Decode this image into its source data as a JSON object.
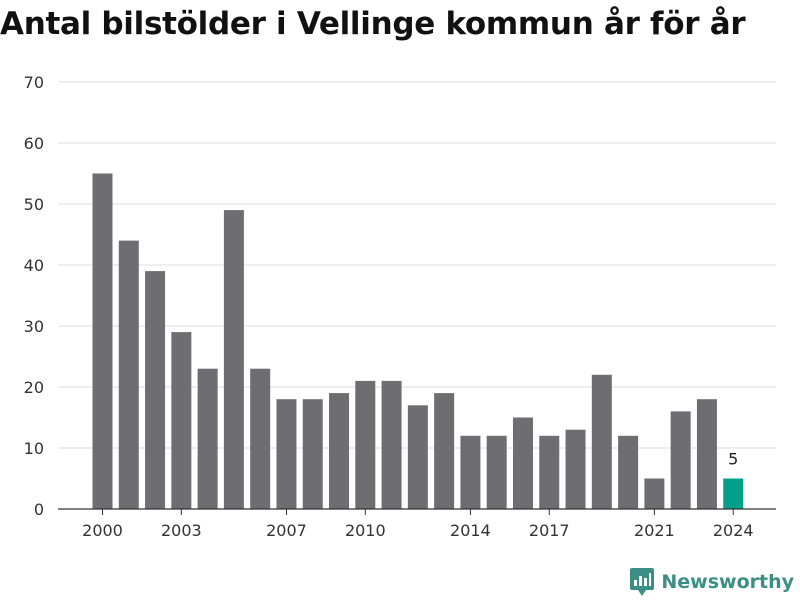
{
  "chart_data": {
    "type": "bar",
    "title": "Antal bilstölder i Vellinge kommun år för år",
    "xlabel": "",
    "ylabel": "",
    "categories": [
      2000,
      2001,
      2002,
      2003,
      2004,
      2005,
      2006,
      2007,
      2008,
      2009,
      2010,
      2011,
      2012,
      2013,
      2014,
      2015,
      2016,
      2017,
      2018,
      2019,
      2020,
      2021,
      2022,
      2023,
      2024
    ],
    "values": [
      55,
      44,
      39,
      29,
      23,
      49,
      23,
      18,
      18,
      19,
      21,
      21,
      17,
      19,
      12,
      12,
      15,
      12,
      13,
      22,
      12,
      5,
      16,
      18,
      5
    ],
    "x_tick_labels": [
      "2000",
      "2003",
      "2007",
      "2010",
      "2014",
      "2017",
      "2021",
      "2024"
    ],
    "y_ticks": [
      0,
      10,
      20,
      30,
      40,
      50,
      60,
      70
    ],
    "ylim": [
      0,
      70
    ],
    "grid": true,
    "highlight": {
      "category": 2024,
      "label": "5",
      "color": "#00a08a"
    },
    "bar_color": "#6e6d72"
  },
  "branding": {
    "name": "Newsworthy",
    "color": "#3b8f84"
  }
}
